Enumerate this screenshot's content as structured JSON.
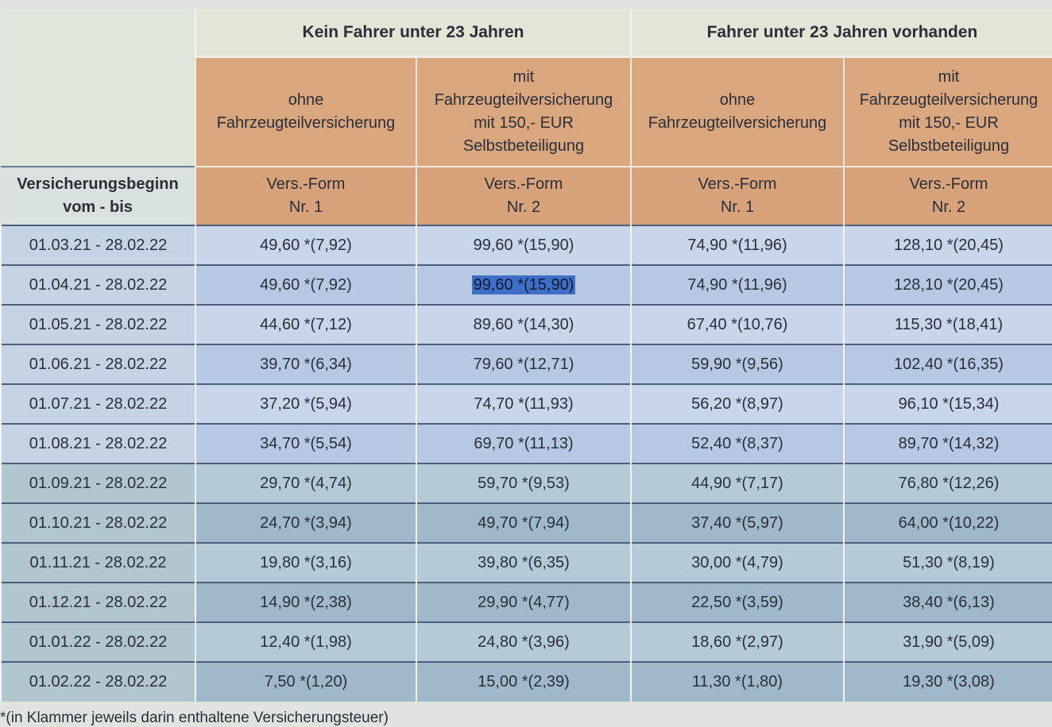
{
  "groups": [
    "Kein Fahrer unter 23 Jahren",
    "Fahrer unter 23 Jahren vorhanden"
  ],
  "subheaders": [
    [
      "ohne",
      "Fahrzeugteilversicherung"
    ],
    [
      "mit",
      "Fahrzeugteilversicherung",
      "mit 150,- EUR",
      "Selbstbeteiligung"
    ],
    [
      "ohne",
      "Fahrzeugteilversicherung"
    ],
    [
      "mit",
      "Fahrzeugteilversicherung",
      "mit 150,- EUR",
      "Selbstbeteiligung"
    ]
  ],
  "row_header": [
    "Versicherungsbeginn",
    "vom - bis"
  ],
  "forms": [
    [
      "Vers.-Form",
      "Nr. 1"
    ],
    [
      "Vers.-Form",
      "Nr. 2"
    ],
    [
      "Vers.-Form",
      "Nr. 1"
    ],
    [
      "Vers.-Form",
      "Nr. 2"
    ]
  ],
  "rows": [
    [
      "01.03.21 - 28.02.22",
      "49,60 *(7,92)",
      "99,60 *(15,90)",
      "74,90 *(11,96)",
      "128,10 *(20,45)"
    ],
    [
      "01.04.21 - 28.02.22",
      "49,60 *(7,92)",
      "99,60 *(15,90)",
      "74,90 *(11,96)",
      "128,10 *(20,45)"
    ],
    [
      "01.05.21 - 28.02.22",
      "44,60 *(7,12)",
      "89,60 *(14,30)",
      "67,40 *(10,76)",
      "115,30 *(18,41)"
    ],
    [
      "01.06.21 - 28.02.22",
      "39,70 *(6,34)",
      "79,60 *(12,71)",
      "59,90 *(9,56)",
      "102,40 *(16,35)"
    ],
    [
      "01.07.21 - 28.02.22",
      "37,20 *(5,94)",
      "74,70 *(11,93)",
      "56,20 *(8,97)",
      "96,10 *(15,34)"
    ],
    [
      "01.08.21 - 28.02.22",
      "34,70 *(5,54)",
      "69,70 *(11,13)",
      "52,40 *(8,37)",
      "89,70 *(14,32)"
    ],
    [
      "01.09.21 - 28.02.22",
      "29,70 *(4,74)",
      "59,70 *(9,53)",
      "44,90 *(7,17)",
      "76,80 *(12,26)"
    ],
    [
      "01.10.21 - 28.02.22",
      "24,70 *(3,94)",
      "49,70 *(7,94)",
      "37,40 *(5,97)",
      "64,00 *(10,22)"
    ],
    [
      "01.11.21 - 28.02.22",
      "19,80 *(3,16)",
      "39,80 *(6,35)",
      "30,00 *(4,79)",
      "51,30 *(8,19)"
    ],
    [
      "01.12.21 - 28.02.22",
      "14,90 *(2,38)",
      "29,90 *(4,77)",
      "22,50 *(3,59)",
      "38,40 *(6,13)"
    ],
    [
      "01.01.22 - 28.02.22",
      "12,40 *(1,98)",
      "24,80 *(3,96)",
      "18,60 *(2,97)",
      "31,90 *(5,09)"
    ],
    [
      "01.02.22 - 28.02.22",
      "7,50 *(1,20)",
      "15,00 *(2,39)",
      "11,30 *(1,80)",
      "19,30 *(3,08)"
    ]
  ],
  "selected_cell": {
    "row": 1,
    "col": 2
  },
  "footnote": "*(in Klammer jeweils darin enthaltene Versicherungsteuer)",
  "colors": {
    "header": "#d9a67e",
    "row": "#c8d5ea",
    "selection": "#3d6fc6"
  }
}
